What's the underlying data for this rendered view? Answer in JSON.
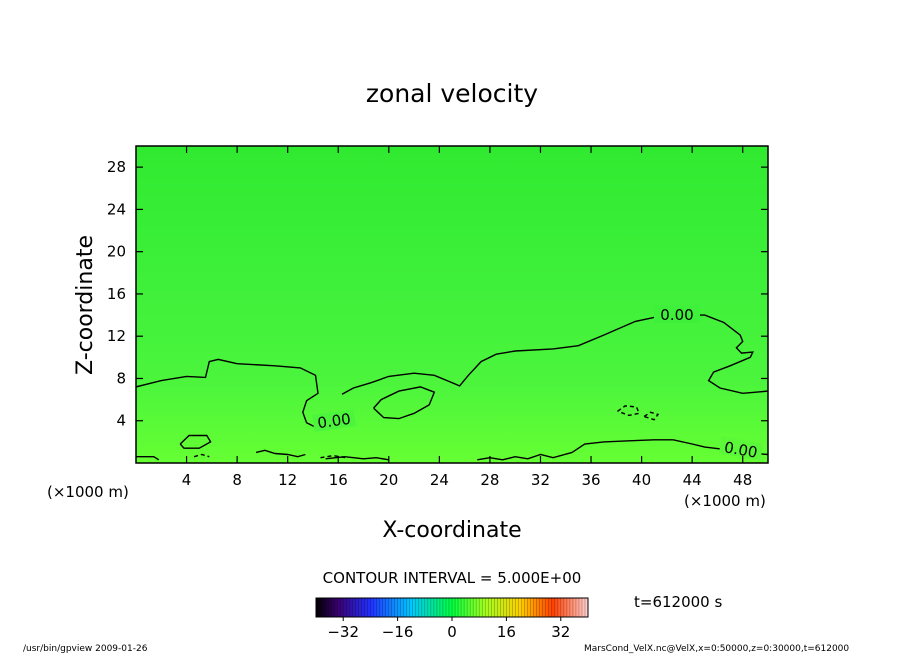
{
  "chart_data": {
    "type": "contour",
    "title": "zonal velocity",
    "xlabel": "X-coordinate",
    "ylabel": "Z-coordinate",
    "x_unit": "(×1000 m)",
    "y_unit": "(×1000 m)",
    "xlim": [
      0,
      50
    ],
    "ylim": [
      0,
      30
    ],
    "x_ticks": [
      4,
      8,
      12,
      16,
      20,
      24,
      28,
      32,
      36,
      40,
      44,
      48
    ],
    "y_ticks": [
      4,
      8,
      12,
      16,
      20,
      24,
      28
    ],
    "contour_interval_text": "CONTOUR INTERVAL = 5.000E+00",
    "contour_labels": [
      "0.00",
      "0.00",
      "0.00"
    ],
    "time_label": "t=612000 s",
    "colorbar": {
      "range": [
        -40,
        40
      ],
      "ticks": [
        -32,
        -16,
        0,
        16,
        32
      ],
      "tick_labels": [
        "−32",
        "−16",
        "0",
        "16",
        "32"
      ]
    },
    "contours": [
      {
        "level": 0,
        "style": "solid",
        "points": [
          [
            0,
            7.2
          ],
          [
            2,
            7.8
          ],
          [
            4,
            8.2
          ],
          [
            5.5,
            8.1
          ],
          [
            5.8,
            9.6
          ],
          [
            6.5,
            9.8
          ],
          [
            8,
            9.4
          ],
          [
            11,
            9.2
          ],
          [
            13,
            9.0
          ],
          [
            14.2,
            8.3
          ],
          [
            14.4,
            6.6
          ],
          [
            13.5,
            5.9
          ],
          [
            13.2,
            4.8
          ],
          [
            13.5,
            3.8
          ],
          [
            14.2,
            3.4
          ]
        ]
      },
      {
        "level": 0,
        "style": "solid",
        "points": [
          [
            16.3,
            6.5
          ],
          [
            17.2,
            7.1
          ],
          [
            18.6,
            7.6
          ],
          [
            20,
            8.2
          ],
          [
            22,
            8.5
          ],
          [
            23.6,
            8.3
          ],
          [
            24.8,
            7.7
          ],
          [
            25.6,
            7.3
          ],
          [
            26.3,
            8.3
          ],
          [
            27.3,
            9.6
          ],
          [
            28.5,
            10.3
          ],
          [
            30,
            10.6
          ],
          [
            33,
            10.8
          ],
          [
            35,
            11.1
          ],
          [
            37,
            12.1
          ],
          [
            39.5,
            13.4
          ],
          [
            41.5,
            13.9
          ],
          [
            43.3,
            14.0
          ],
          [
            45,
            14.0
          ],
          [
            46.5,
            13.3
          ],
          [
            47.8,
            12.1
          ],
          [
            48,
            11.5
          ],
          [
            47.5,
            10.9
          ],
          [
            47.9,
            10.4
          ],
          [
            48.8,
            10.5
          ],
          [
            48.6,
            10.0
          ],
          [
            47,
            9.2
          ],
          [
            45.7,
            8.6
          ],
          [
            45.3,
            7.8
          ],
          [
            46.2,
            7.1
          ],
          [
            48,
            6.6
          ],
          [
            50,
            6.8
          ]
        ]
      },
      {
        "level": 0,
        "style": "solid",
        "points": [
          [
            18.8,
            5.2
          ],
          [
            19.4,
            6.0
          ],
          [
            20.8,
            6.8
          ],
          [
            22.5,
            7.2
          ],
          [
            23.6,
            6.7
          ],
          [
            23.2,
            5.5
          ],
          [
            22,
            4.7
          ],
          [
            20.8,
            4.2
          ],
          [
            19.6,
            4.3
          ],
          [
            18.8,
            5.2
          ]
        ]
      },
      {
        "level": 0,
        "style": "solid",
        "points": [
          [
            3.5,
            1.8
          ],
          [
            4.2,
            2.6
          ],
          [
            5.6,
            2.6
          ],
          [
            5.9,
            2.0
          ],
          [
            5,
            1.4
          ],
          [
            3.8,
            1.4
          ],
          [
            3.5,
            1.8
          ]
        ]
      },
      {
        "level": 0,
        "style": "solid",
        "points": [
          [
            34.5,
            1.0
          ],
          [
            35.5,
            1.8
          ],
          [
            37,
            2.0
          ],
          [
            39,
            2.1
          ],
          [
            41,
            2.2
          ],
          [
            42.5,
            2.2
          ],
          [
            44,
            1.8
          ],
          [
            45,
            1.5
          ],
          [
            46.5,
            1.3
          ],
          [
            47.5,
            1.1
          ],
          [
            49,
            0.9
          ],
          [
            50,
            0.8
          ]
        ]
      },
      {
        "level": 0,
        "style": "solid",
        "points": [
          [
            0,
            0.6
          ],
          [
            1.4,
            0.6
          ],
          [
            1.8,
            0.3
          ]
        ]
      },
      {
        "level": 0,
        "style": "solid",
        "points": [
          [
            9.5,
            1.0
          ],
          [
            10.2,
            1.2
          ],
          [
            11,
            0.9
          ],
          [
            12,
            0.8
          ],
          [
            12.8,
            0.6
          ],
          [
            13.4,
            0.8
          ]
        ]
      },
      {
        "level": 0,
        "style": "solid",
        "points": [
          [
            15,
            0.4
          ],
          [
            16.5,
            0.6
          ],
          [
            18,
            0.4
          ],
          [
            19,
            0.5
          ],
          [
            20,
            0.3
          ]
        ]
      },
      {
        "level": 0,
        "style": "solid",
        "points": [
          [
            27,
            0.3
          ],
          [
            28,
            0.5
          ],
          [
            29,
            0.3
          ],
          [
            30,
            0.6
          ],
          [
            31,
            0.4
          ],
          [
            32,
            0.8
          ],
          [
            33,
            0.5
          ],
          [
            34.5,
            1.0
          ]
        ]
      },
      {
        "level": -5,
        "style": "dashed",
        "points": [
          [
            38.1,
            4.9
          ],
          [
            38.7,
            5.4
          ],
          [
            39.6,
            5.3
          ],
          [
            39.8,
            4.7
          ],
          [
            39.0,
            4.5
          ],
          [
            38.1,
            4.9
          ]
        ]
      },
      {
        "level": -5,
        "style": "dashed",
        "points": [
          [
            40.2,
            4.4
          ],
          [
            40.7,
            4.8
          ],
          [
            41.3,
            4.6
          ],
          [
            41.0,
            4.1
          ],
          [
            40.2,
            4.4
          ]
        ]
      },
      {
        "level": -5,
        "style": "dashed",
        "points": [
          [
            4.6,
            0.6
          ],
          [
            5.2,
            0.8
          ],
          [
            5.8,
            0.6
          ]
        ]
      },
      {
        "level": -5,
        "style": "dashed",
        "points": [
          [
            14.6,
            0.5
          ],
          [
            15.6,
            0.7
          ],
          [
            16.6,
            0.5
          ]
        ]
      }
    ]
  },
  "footer": {
    "left": "/usr/bin/gpview   2009-01-26",
    "right": "MarsCond_VelX.nc@VelX,x=0:50000,z=0:30000,t=612000"
  },
  "colors": {
    "field_base": "#33ee33",
    "field_low": "#66ff33",
    "contour": "#000000"
  }
}
